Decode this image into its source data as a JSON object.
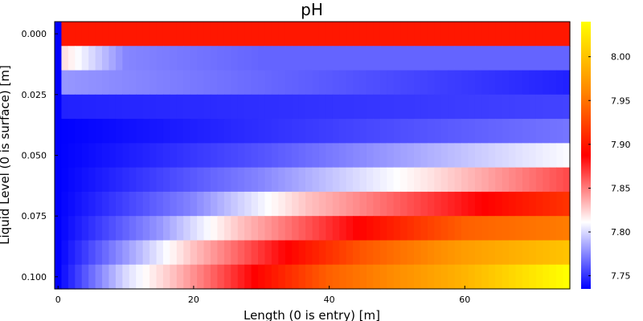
{
  "chart_data": {
    "type": "heatmap",
    "title": "pH",
    "xlabel": "Length (0 is entry) [m]",
    "ylabel": "Liquid Level (0 is surface) [m]",
    "x_ticks": [
      0,
      20,
      40,
      60
    ],
    "x_tick_labels": [
      "0",
      "20",
      "40",
      "60"
    ],
    "y_ticks": [
      0.0,
      0.025,
      0.05,
      0.075,
      0.1
    ],
    "y_tick_labels": [
      "0.000",
      "0.025",
      "0.050",
      "0.075",
      "0.100"
    ],
    "xlim": [
      -0.5,
      75.5
    ],
    "ylim": [
      -0.005,
      0.105
    ],
    "y_reversed": true,
    "colorbar": {
      "ticks": [
        7.75,
        7.8,
        7.85,
        7.9,
        7.95,
        8.0
      ],
      "tick_labels": [
        "7.75",
        "7.80",
        "7.85",
        "7.90",
        "7.95",
        "8.00"
      ],
      "range": [
        7.735,
        8.04
      ],
      "colormap": [
        "#0000ff",
        "#ffffff",
        "#ff0000",
        "#ff8c00",
        "#ffff00"
      ]
    },
    "rows": [
      {
        "y": 0.0,
        "profile": [
          [
            0,
            7.735
          ],
          [
            1,
            7.9
          ],
          [
            75,
            7.9
          ]
        ]
      },
      {
        "y": 0.01,
        "profile": [
          [
            0,
            7.735
          ],
          [
            1,
            7.82
          ],
          [
            10,
            7.775
          ],
          [
            30,
            7.765
          ],
          [
            75,
            7.765
          ]
        ]
      },
      {
        "y": 0.02,
        "profile": [
          [
            0,
            7.735
          ],
          [
            1,
            7.78
          ],
          [
            75,
            7.745
          ]
        ]
      },
      {
        "y": 0.03,
        "profile": [
          [
            0,
            7.735
          ],
          [
            1,
            7.745
          ],
          [
            75,
            7.755
          ]
        ]
      },
      {
        "y": 0.04,
        "profile": [
          [
            0,
            7.735
          ],
          [
            75,
            7.77
          ]
        ]
      },
      {
        "y": 0.05,
        "profile": [
          [
            0,
            7.735
          ],
          [
            30,
            7.76
          ],
          [
            75,
            7.81
          ]
        ]
      },
      {
        "y": 0.06,
        "profile": [
          [
            0,
            7.735
          ],
          [
            30,
            7.775
          ],
          [
            55,
            7.82
          ],
          [
            75,
            7.865
          ]
        ]
      },
      {
        "y": 0.07,
        "profile": [
          [
            0,
            7.735
          ],
          [
            20,
            7.775
          ],
          [
            37,
            7.83
          ],
          [
            75,
            7.915
          ]
        ]
      },
      {
        "y": 0.08,
        "profile": [
          [
            0,
            7.735
          ],
          [
            15,
            7.78
          ],
          [
            27,
            7.83
          ],
          [
            60,
            7.94
          ],
          [
            75,
            7.955
          ]
        ]
      },
      {
        "y": 0.09,
        "profile": [
          [
            0,
            7.735
          ],
          [
            12,
            7.79
          ],
          [
            20,
            7.83
          ],
          [
            45,
            7.935
          ],
          [
            60,
            7.975
          ],
          [
            75,
            8.0
          ]
        ]
      },
      {
        "y": 0.1,
        "profile": [
          [
            0,
            7.735
          ],
          [
            10,
            7.8
          ],
          [
            17,
            7.83
          ],
          [
            40,
            7.94
          ],
          [
            60,
            7.99
          ],
          [
            75,
            8.04
          ]
        ]
      }
    ]
  }
}
